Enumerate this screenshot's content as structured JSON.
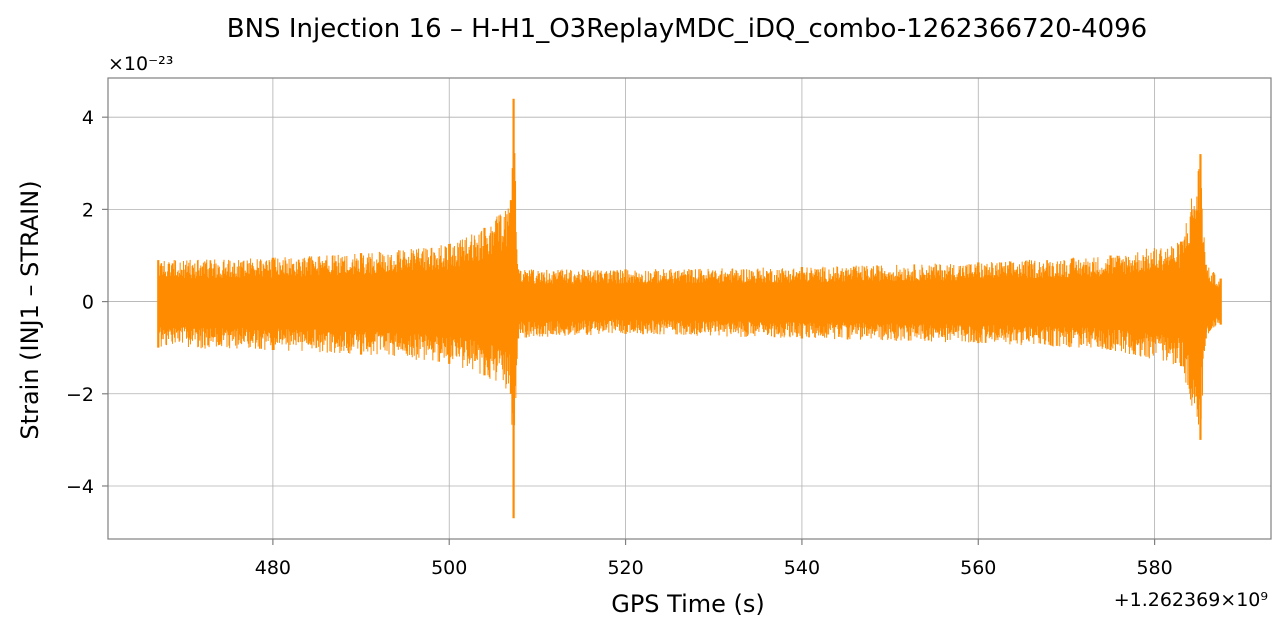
{
  "chart_data": {
    "type": "line",
    "title": "BNS Injection 16 – H-H1_O3ReplayMDC_iDQ_combo-1262366720-4096",
    "xlabel": "GPS Time (s)",
    "ylabel": "Strain (INJ1 – STRAIN)",
    "x_offset_label": "+1.262369×10⁹",
    "y_scale_label": "×10⁻²³",
    "xlim": [
      461.3,
      593.2
    ],
    "ylim": [
      -5.15,
      4.85
    ],
    "xticks": [
      480,
      500,
      520,
      540,
      560,
      580
    ],
    "yticks": [
      -4,
      -2,
      0,
      2,
      4
    ],
    "ytick_labels": [
      "−4",
      "−2",
      "0",
      "2",
      "4"
    ],
    "grid": true,
    "series": [
      {
        "color": "#ff8c00",
        "x_range": [
          467.0,
          587.5
        ],
        "envelope": [
          {
            "x": 467.0,
            "upper": 0.9,
            "lower": -1.0
          },
          {
            "x": 480.0,
            "upper": 0.95,
            "lower": -1.05
          },
          {
            "x": 490.0,
            "upper": 1.05,
            "lower": -1.15
          },
          {
            "x": 500.0,
            "upper": 1.25,
            "lower": -1.35
          },
          {
            "x": 504.0,
            "upper": 1.6,
            "lower": -1.6
          },
          {
            "x": 507.0,
            "upper": 2.2,
            "lower": -2.0
          },
          {
            "x": 507.3,
            "upper": 4.4,
            "lower": -4.7
          },
          {
            "x": 507.8,
            "upper": 0.7,
            "lower": -0.8
          },
          {
            "x": 520.0,
            "upper": 0.7,
            "lower": -0.7
          },
          {
            "x": 540.0,
            "upper": 0.75,
            "lower": -0.8
          },
          {
            "x": 560.0,
            "upper": 0.85,
            "lower": -0.9
          },
          {
            "x": 575.0,
            "upper": 1.0,
            "lower": -1.05
          },
          {
            "x": 583.0,
            "upper": 1.3,
            "lower": -1.4
          },
          {
            "x": 585.2,
            "upper": 3.2,
            "lower": -3.0
          },
          {
            "x": 585.8,
            "upper": 0.8,
            "lower": -0.8
          },
          {
            "x": 587.5,
            "upper": 0.5,
            "lower": -0.5
          }
        ]
      }
    ]
  }
}
